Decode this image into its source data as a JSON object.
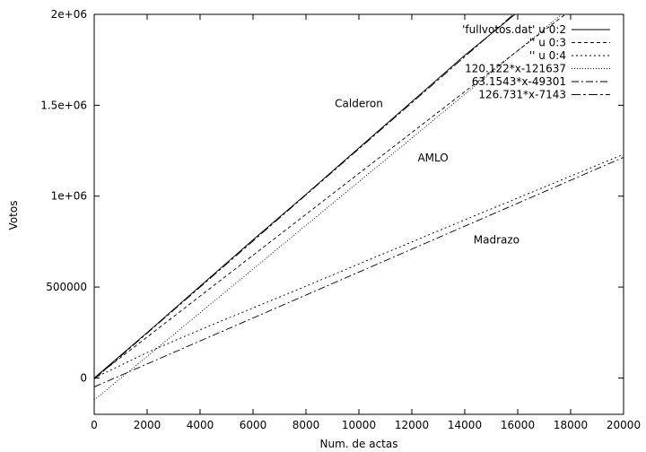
{
  "chart_data": {
    "type": "line",
    "title": "",
    "xlabel": "Num. de actas",
    "ylabel": "Votos",
    "xlim": [
      0,
      20000
    ],
    "ylim": [
      -200000,
      2000000
    ],
    "x_ticks": [
      0,
      2000,
      4000,
      6000,
      8000,
      10000,
      12000,
      14000,
      16000,
      18000,
      20000
    ],
    "x_tick_labels": [
      "0",
      "2000",
      "4000",
      "6000",
      "8000",
      "10000",
      "12000",
      "14000",
      "16000",
      "18000",
      "20000"
    ],
    "y_ticks": [
      0,
      500000,
      1000000,
      1500000,
      2000000
    ],
    "y_tick_labels": [
      "0",
      "500000",
      "1e+06",
      "1.5e+06",
      "2e+06"
    ],
    "grid": false,
    "legend_position": "top-right",
    "series": [
      {
        "name": "'fullvotos.dat' u 0:2",
        "style": "solid",
        "x": [
          0,
          2000,
          4000,
          6000,
          8000,
          10000,
          12000,
          14000,
          15900
        ],
        "y": [
          0,
          250000,
          505000,
          760000,
          1010000,
          1265000,
          1520000,
          1775000,
          2000000
        ]
      },
      {
        "name": "'' u 0:3",
        "style": "dashed",
        "x": [
          0,
          2000,
          4000,
          6000,
          8000,
          10000,
          12000,
          14000,
          16000,
          17800
        ],
        "y": [
          0,
          225000,
          450000,
          675000,
          900000,
          1125000,
          1350000,
          1575000,
          1800000,
          2000000
        ]
      },
      {
        "name": "'' u 0:4",
        "style": "dotted",
        "x": [
          0,
          2000,
          4000,
          6000,
          8000,
          10000,
          12000,
          14000,
          16000,
          18000,
          20000
        ],
        "y": [
          0,
          140000,
          265000,
          385000,
          505000,
          627000,
          748000,
          870000,
          990000,
          1110000,
          1230000
        ]
      },
      {
        "name": "120.122*x-121637",
        "style": "dotted-fine",
        "slope": 120.122,
        "intercept": -121637
      },
      {
        "name": "63.1543*x-49301",
        "style": "dashdot",
        "slope": 63.1543,
        "intercept": -49301
      },
      {
        "name": "126.731*x-7143",
        "style": "dashdot-long",
        "slope": 126.731,
        "intercept": -7143
      }
    ],
    "annotations": [
      {
        "text": "Calderon",
        "x": 10000,
        "y": 1490000
      },
      {
        "text": "AMLO",
        "x": 12800,
        "y": 1190000
      },
      {
        "text": "Madrazo",
        "x": 15200,
        "y": 740000
      }
    ]
  }
}
